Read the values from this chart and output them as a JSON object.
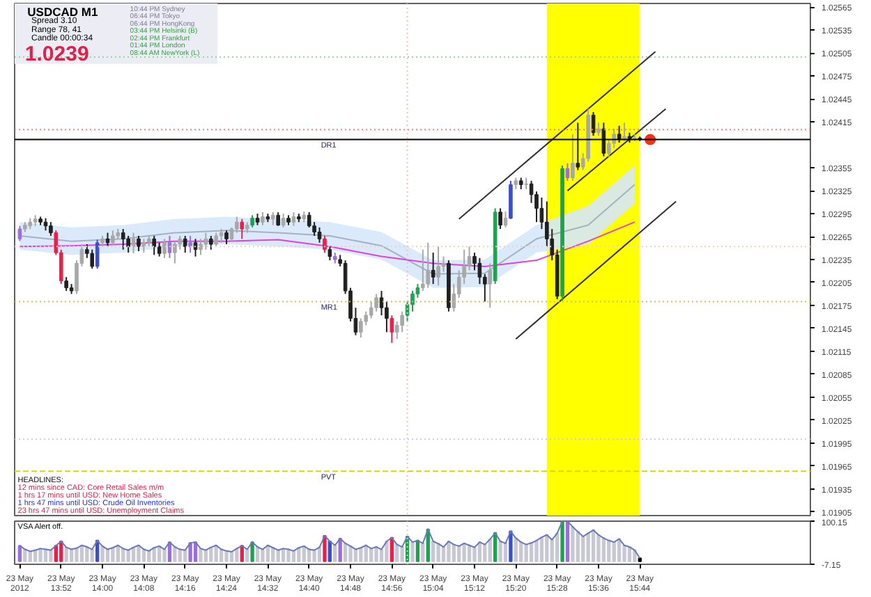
{
  "chart_data": [
    {
      "type": "candlestick",
      "x": [
        "2012-05-23T13:44",
        "2012-05-23T13:45",
        "2012-05-23T13:46",
        "2012-05-23T13:47",
        "2012-05-23T13:48",
        "2012-05-23T13:49",
        "2012-05-23T13:50",
        "2012-05-23T13:51",
        "2012-05-23T13:52",
        "2012-05-23T13:53",
        "2012-05-23T13:54",
        "2012-05-23T13:55",
        "2012-05-23T13:56",
        "2012-05-23T13:57",
        "2012-05-23T13:58",
        "2012-05-23T13:59",
        "2012-05-23T14:00",
        "2012-05-23T14:01",
        "2012-05-23T14:02",
        "2012-05-23T14:03",
        "2012-05-23T14:04",
        "2012-05-23T14:05",
        "2012-05-23T14:06",
        "2012-05-23T14:07",
        "2012-05-23T14:08",
        "2012-05-23T14:09",
        "2012-05-23T14:10",
        "2012-05-23T14:11",
        "2012-05-23T14:12",
        "2012-05-23T14:13",
        "2012-05-23T14:14",
        "2012-05-23T14:15",
        "2012-05-23T14:16",
        "2012-05-23T14:17",
        "2012-05-23T14:18",
        "2012-05-23T14:19",
        "2012-05-23T14:20",
        "2012-05-23T14:21",
        "2012-05-23T14:22",
        "2012-05-23T14:23",
        "2012-05-23T14:24",
        "2012-05-23T14:25",
        "2012-05-23T14:26",
        "2012-05-23T14:27",
        "2012-05-23T14:28",
        "2012-05-23T14:29",
        "2012-05-23T14:30",
        "2012-05-23T14:31",
        "2012-05-23T14:32",
        "2012-05-23T14:33",
        "2012-05-23T14:34",
        "2012-05-23T14:35",
        "2012-05-23T14:36",
        "2012-05-23T14:37",
        "2012-05-23T14:38",
        "2012-05-23T14:39",
        "2012-05-23T14:40",
        "2012-05-23T14:41",
        "2012-05-23T14:42",
        "2012-05-23T14:43",
        "2012-05-23T14:44",
        "2012-05-23T14:45",
        "2012-05-23T14:46",
        "2012-05-23T14:47",
        "2012-05-23T14:48",
        "2012-05-23T14:49",
        "2012-05-23T14:50",
        "2012-05-23T14:51",
        "2012-05-23T14:52",
        "2012-05-23T14:53",
        "2012-05-23T14:54",
        "2012-05-23T14:55",
        "2012-05-23T14:56",
        "2012-05-23T14:57",
        "2012-05-23T14:58",
        "2012-05-23T14:59",
        "2012-05-23T15:00",
        "2012-05-23T15:01",
        "2012-05-23T15:02",
        "2012-05-23T15:03",
        "2012-05-23T15:04",
        "2012-05-23T15:05",
        "2012-05-23T15:06",
        "2012-05-23T15:07",
        "2012-05-23T15:08",
        "2012-05-23T15:09",
        "2012-05-23T15:10",
        "2012-05-23T15:11",
        "2012-05-23T15:12",
        "2012-05-23T15:13",
        "2012-05-23T15:14",
        "2012-05-23T15:15",
        "2012-05-23T15:16",
        "2012-05-23T15:17",
        "2012-05-23T15:18",
        "2012-05-23T15:19",
        "2012-05-23T15:20",
        "2012-05-23T15:21",
        "2012-05-23T15:22",
        "2012-05-23T15:23",
        "2012-05-23T15:24",
        "2012-05-23T15:25",
        "2012-05-23T15:26",
        "2012-05-23T15:27",
        "2012-05-23T15:28",
        "2012-05-23T15:29",
        "2012-05-23T15:30",
        "2012-05-23T15:31",
        "2012-05-23T15:32",
        "2012-05-23T15:33",
        "2012-05-23T15:34",
        "2012-05-23T15:35",
        "2012-05-23T15:36",
        "2012-05-23T15:37",
        "2012-05-23T15:38",
        "2012-05-23T15:39",
        "2012-05-23T15:40",
        "2012-05-23T15:41",
        "2012-05-23T15:42",
        "2012-05-23T15:43",
        "2012-05-23T15:44"
      ],
      "ohlc": [
        [
          1.02262,
          1.02279,
          1.02259,
          1.02275
        ],
        [
          1.02275,
          1.02284,
          1.02271,
          1.0228
        ],
        [
          1.02279,
          1.02289,
          1.02275,
          1.02284
        ],
        [
          1.02284,
          1.02293,
          1.02279,
          1.02288
        ],
        [
          1.02288,
          1.02291,
          1.0228,
          1.02284
        ],
        [
          1.02284,
          1.02289,
          1.02273,
          1.02279
        ],
        [
          1.02279,
          1.02284,
          1.02266,
          1.0227
        ],
        [
          1.0227,
          1.02273,
          1.02241,
          1.02244
        ],
        [
          1.02244,
          1.02248,
          1.02203,
          1.02207
        ],
        [
          1.02207,
          1.02212,
          1.02194,
          1.02198
        ],
        [
          1.02198,
          1.02203,
          1.0219,
          1.02194
        ],
        [
          1.02194,
          1.02234,
          1.0219,
          1.0223
        ],
        [
          1.0223,
          1.02255,
          1.02226,
          1.02248
        ],
        [
          1.02248,
          1.02255,
          1.02237,
          1.02243
        ],
        [
          1.02243,
          1.02248,
          1.02223,
          1.02226
        ],
        [
          1.02226,
          1.02261,
          1.02223,
          1.02257
        ],
        [
          1.02257,
          1.02266,
          1.02252,
          1.02262
        ],
        [
          1.02262,
          1.0227,
          1.02252,
          1.02257
        ],
        [
          1.02257,
          1.02273,
          1.02253,
          1.02266
        ],
        [
          1.02266,
          1.02275,
          1.02262,
          1.0227
        ],
        [
          1.0227,
          1.02275,
          1.02248,
          1.02262
        ],
        [
          1.02262,
          1.02266,
          1.02244,
          1.02252
        ],
        [
          1.02252,
          1.0227,
          1.02243,
          1.02262
        ],
        [
          1.02262,
          1.02266,
          1.02246,
          1.02252
        ],
        [
          1.02252,
          1.02262,
          1.02244,
          1.02257
        ],
        [
          1.02257,
          1.02266,
          1.02252,
          1.02262
        ],
        [
          1.02262,
          1.02266,
          1.02241,
          1.02252
        ],
        [
          1.02252,
          1.02257,
          1.02239,
          1.02243
        ],
        [
          1.02243,
          1.02262,
          1.02237,
          1.02257
        ],
        [
          1.02257,
          1.02266,
          1.02237,
          1.02244
        ],
        [
          1.02244,
          1.02259,
          1.0223,
          1.02255
        ],
        [
          1.02255,
          1.02266,
          1.02248,
          1.02262
        ],
        [
          1.02262,
          1.02266,
          1.02244,
          1.02252
        ],
        [
          1.02252,
          1.02266,
          1.02244,
          1.02257
        ],
        [
          1.02257,
          1.02262,
          1.02239,
          1.02248
        ],
        [
          1.02248,
          1.02262,
          1.02241,
          1.02255
        ],
        [
          1.02255,
          1.0227,
          1.02248,
          1.02262
        ],
        [
          1.02262,
          1.02266,
          1.02248,
          1.02255
        ],
        [
          1.02255,
          1.0227,
          1.02252,
          1.02266
        ],
        [
          1.02266,
          1.02275,
          1.02257,
          1.0227
        ],
        [
          1.0227,
          1.02273,
          1.02255,
          1.02262
        ],
        [
          1.02262,
          1.02277,
          1.02259,
          1.02275
        ],
        [
          1.02275,
          1.02291,
          1.0227,
          1.02284
        ],
        [
          1.02284,
          1.02288,
          1.02262,
          1.02275
        ],
        [
          1.02275,
          1.02284,
          1.0227,
          1.0228
        ],
        [
          1.0228,
          1.02293,
          1.02277,
          1.02289
        ],
        [
          1.02289,
          1.02295,
          1.0228,
          1.02284
        ],
        [
          1.02284,
          1.02297,
          1.0228,
          1.02291
        ],
        [
          1.02291,
          1.02295,
          1.02284,
          1.02288
        ],
        [
          1.02288,
          1.02297,
          1.0228,
          1.02293
        ],
        [
          1.02293,
          1.02297,
          1.02279,
          1.0228
        ],
        [
          1.0228,
          1.02295,
          1.02277,
          1.02289
        ],
        [
          1.02289,
          1.02293,
          1.0228,
          1.02284
        ],
        [
          1.02284,
          1.02297,
          1.02279,
          1.02291
        ],
        [
          1.02291,
          1.02295,
          1.02284,
          1.02288
        ],
        [
          1.02288,
          1.02298,
          1.02284,
          1.02293
        ],
        [
          1.02293,
          1.02297,
          1.02277,
          1.02279
        ],
        [
          1.02279,
          1.02284,
          1.02266,
          1.02271
        ],
        [
          1.02271,
          1.02277,
          1.02257,
          1.02262
        ],
        [
          1.02262,
          1.02266,
          1.02244,
          1.02248
        ],
        [
          1.02248,
          1.02252,
          1.02234,
          1.02239
        ],
        [
          1.02239,
          1.02244,
          1.0223,
          1.02235
        ],
        [
          1.02235,
          1.02241,
          1.02226,
          1.0223
        ],
        [
          1.0223,
          1.02234,
          1.0219,
          1.02194
        ],
        [
          1.02194,
          1.02198,
          1.02154,
          1.02158
        ],
        [
          1.02158,
          1.02172,
          1.02136,
          1.0214
        ],
        [
          1.0214,
          1.02158,
          1.02133,
          1.02154
        ],
        [
          1.02154,
          1.02167,
          1.02149,
          1.02162
        ],
        [
          1.02162,
          1.0218,
          1.02158,
          1.02172
        ],
        [
          1.02172,
          1.0219,
          1.02167,
          1.02185
        ],
        [
          1.02185,
          1.02194,
          1.02162,
          1.02172
        ],
        [
          1.02172,
          1.0218,
          1.0214,
          1.02158
        ],
        [
          1.02158,
          1.02162,
          1.02126,
          1.0214
        ],
        [
          1.0214,
          1.02154,
          1.02131,
          1.02149
        ],
        [
          1.02149,
          1.02167,
          1.0214,
          1.02162
        ],
        [
          1.02162,
          1.0218,
          1.02154,
          1.02176
        ],
        [
          1.02176,
          1.02194,
          1.02167,
          1.0219
        ],
        [
          1.0219,
          1.02203,
          1.02185,
          1.02198
        ],
        [
          1.02198,
          1.02248,
          1.02194,
          1.02203
        ],
        [
          1.02203,
          1.02257,
          1.02198,
          1.02221
        ],
        [
          1.02221,
          1.02244,
          1.02203,
          1.02212
        ],
        [
          1.02212,
          1.02252,
          1.02201,
          1.02226
        ],
        [
          1.02226,
          1.02239,
          1.02219,
          1.0223
        ],
        [
          1.0223,
          1.02234,
          1.02167,
          1.02172
        ],
        [
          1.02172,
          1.02203,
          1.02167,
          1.0219
        ],
        [
          1.0219,
          1.02221,
          1.02185,
          1.02212
        ],
        [
          1.02212,
          1.02248,
          1.02203,
          1.02226
        ],
        [
          1.02226,
          1.02252,
          1.02221,
          1.02239
        ],
        [
          1.02239,
          1.02244,
          1.02221,
          1.0223
        ],
        [
          1.0223,
          1.02237,
          1.02203,
          1.02212
        ],
        [
          1.02212,
          1.02216,
          1.0218,
          1.02203
        ],
        [
          1.02203,
          1.0223,
          1.02172,
          1.02221
        ],
        [
          1.02207,
          1.02302,
          1.02203,
          1.02297
        ],
        [
          1.02297,
          1.02302,
          1.02275,
          1.0228
        ],
        [
          1.0228,
          1.02298,
          1.02277,
          1.02289
        ],
        [
          1.02289,
          1.02338,
          1.02288,
          1.02333
        ],
        [
          1.02333,
          1.02342,
          1.02327,
          1.02338
        ],
        [
          1.02338,
          1.02342,
          1.02327,
          1.02333
        ],
        [
          1.02333,
          1.02342,
          1.02327,
          1.02334
        ],
        [
          1.02334,
          1.02338,
          1.02309,
          1.0232
        ],
        [
          1.0232,
          1.02324,
          1.02284,
          1.02302
        ],
        [
          1.02302,
          1.02316,
          1.02275,
          1.02284
        ],
        [
          1.02284,
          1.02311,
          1.02252,
          1.02262
        ],
        [
          1.02262,
          1.02275,
          1.02234,
          1.02241
        ],
        [
          1.02241,
          1.02248,
          1.02183,
          1.02187
        ],
        [
          1.02187,
          1.02358,
          1.02181,
          1.02354
        ],
        [
          1.02354,
          1.02361,
          1.02338,
          1.02342
        ],
        [
          1.02342,
          1.02399,
          1.02338,
          1.02361
        ],
        [
          1.02361,
          1.02414,
          1.02352,
          1.02356
        ],
        [
          1.02356,
          1.02374,
          1.02352,
          1.02367
        ],
        [
          1.02367,
          1.02432,
          1.02363,
          1.02424
        ],
        [
          1.02424,
          1.02428,
          1.02397,
          1.02401
        ],
        [
          1.02401,
          1.02414,
          1.02397,
          1.02406
        ],
        [
          1.02406,
          1.02414,
          1.0237,
          1.02374
        ],
        [
          1.02374,
          1.02392,
          1.02369,
          1.02387
        ],
        [
          1.02387,
          1.02406,
          1.02381,
          1.02399
        ],
        [
          1.02399,
          1.0241,
          1.02388,
          1.02392
        ],
        [
          1.02392,
          1.02414,
          1.0239,
          1.02396
        ],
        [
          1.02396,
          1.02401,
          1.02388,
          1.02392
        ],
        [
          1.02392,
          1.02399,
          1.0239,
          1.02394
        ],
        [
          1.02394,
          1.02396,
          1.0239,
          1.02392
        ]
      ],
      "colors": [
        "#9a70d8",
        "#a8a8a8",
        "#a8a8a8",
        "#a8a8a8",
        "#202020",
        "#202020",
        "#202020",
        "#e8204a",
        "#e8204a",
        "#202020",
        "#202020",
        "#a8a8a8",
        "#a8a8a8",
        "#202020",
        "#202020",
        "#3a4fd0",
        "#a8a8a8",
        "#202020",
        "#a8a8a8",
        "#a8a8a8",
        "#202020",
        "#202020",
        "#a8a8a8",
        "#202020",
        "#a8a8a8",
        "#a8a8a8",
        "#202020",
        "#202020",
        "#a8a8a8",
        "#9a70d8",
        "#a8a8a8",
        "#a8a8a8",
        "#202020",
        "#9a70d8",
        "#202020",
        "#a8a8a8",
        "#a8a8a8",
        "#202020",
        "#a8a8a8",
        "#a8a8a8",
        "#202020",
        "#a8a8a8",
        "#a8a8a8",
        "#e8204a",
        "#a8a8a8",
        "#20a050",
        "#202020",
        "#a8a8a8",
        "#202020",
        "#a8a8a8",
        "#202020",
        "#a8a8a8",
        "#202020",
        "#a8a8a8",
        "#202020",
        "#a8a8a8",
        "#202020",
        "#202020",
        "#202020",
        "#e8204a",
        "#202020",
        "#9a70d8",
        "#202020",
        "#202020",
        "#202020",
        "#202020",
        "#a8a8a8",
        "#a8a8a8",
        "#a8a8a8",
        "#a8a8a8",
        "#202020",
        "#202020",
        "#e8204a",
        "#a8a8a8",
        "#a8a8a8",
        "#20a050",
        "#20a050",
        "#20a050",
        "#a8a8a8",
        "#a8a8a8",
        "#202020",
        "#a8a8a8",
        "#a8a8a8",
        "#202020",
        "#a8a8a8",
        "#a8a8a8",
        "#a8a8a8",
        "#a8a8a8",
        "#202020",
        "#202020",
        "#202020",
        "#a8a8a8",
        "#20a050",
        "#202020",
        "#a8a8a8",
        "#3a4fd0",
        "#a8a8a8",
        "#202020",
        "#a8a8a8",
        "#202020",
        "#202020",
        "#202020",
        "#202020",
        "#202020",
        "#202020",
        "#20a050",
        "#9a70d8",
        "#a8a8a8",
        "#202020",
        "#a8a8a8",
        "#a8a8a8",
        "#202020",
        "#a8a8a8",
        "#202020",
        "#a8a8a8",
        "#a8a8a8",
        "#202020",
        "#a8a8a8",
        "#202020",
        "#a8a8a8",
        "#202020"
      ],
      "series": [
        {
          "type": "line",
          "color": "#a8b0c0",
          "x": [
            "2012-05-23T13:44",
            "2012-05-23T13:54",
            "2012-05-23T14:04",
            "2012-05-23T14:14",
            "2012-05-23T14:24",
            "2012-05-23T14:34",
            "2012-05-23T14:44",
            "2012-05-23T14:54",
            "2012-05-23T15:04",
            "2012-05-23T15:14",
            "2012-05-23T15:24",
            "2012-05-23T15:34",
            "2012-05-23T15:43"
          ],
          "values": [
            1.02266,
            1.02259,
            1.02262,
            1.0227,
            1.02273,
            1.0227,
            1.02266,
            1.02253,
            1.02216,
            1.02217,
            1.02262,
            1.0228,
            1.02333
          ],
          "lower": [
            1.02248,
            1.02241,
            1.02244,
            1.02252,
            1.02255,
            1.02252,
            1.02248,
            1.02235,
            1.02198,
            1.02199,
            1.02244,
            1.02255,
            1.02308
          ],
          "upper": [
            1.02284,
            1.02277,
            1.0228,
            1.02288,
            1.02291,
            1.02288,
            1.02284,
            1.02271,
            1.02234,
            1.02235,
            1.0228,
            1.02305,
            1.02358
          ]
        },
        {
          "type": "line",
          "color": "#e040e0",
          "x": [
            "2012-05-23T13:44",
            "2012-05-23T13:54",
            "2012-05-23T14:04",
            "2012-05-23T14:14",
            "2012-05-23T14:24",
            "2012-05-23T14:34",
            "2012-05-23T14:44",
            "2012-05-23T14:54",
            "2012-05-23T15:04",
            "2012-05-23T15:14",
            "2012-05-23T15:24",
            "2012-05-23T15:34",
            "2012-05-23T15:43"
          ],
          "values": [
            1.02252,
            1.02253,
            1.02255,
            1.02259,
            1.02259,
            1.02261,
            1.02252,
            1.02239,
            1.0223,
            1.02226,
            1.02234,
            1.02259,
            1.02284
          ]
        },
        {
          "type": "line",
          "color": "#303030",
          "x": [
            "2012-05-23T15:09",
            "2012-05-23T15:47"
          ],
          "values": [
            1.02288,
            1.02507
          ]
        },
        {
          "type": "line",
          "color": "#303030",
          "x": [
            "2012-05-23T15:30",
            "2012-05-23T15:49"
          ],
          "values": [
            1.02325,
            1.02432
          ]
        },
        {
          "type": "line",
          "color": "#303030",
          "x": [
            "2012-05-23T15:20",
            "2012-05-23T15:51"
          ],
          "values": [
            1.02131,
            1.02311
          ]
        },
        {
          "type": "scatter",
          "color": "#ff3010",
          "marker": "circle",
          "x": [
            "2012-05-23T15:46"
          ],
          "values": [
            1.02392
          ]
        }
      ],
      "xlim": [
        "2012-05-23T13:43",
        "2012-05-23T16:17"
      ],
      "ylim": [
        1.019,
        1.0257
      ],
      "yticks": [
        1.01905,
        1.01935,
        1.01965,
        1.01995,
        1.02025,
        1.02055,
        1.02085,
        1.02115,
        1.02145,
        1.02175,
        1.02205,
        1.02235,
        1.02265,
        1.02295,
        1.02325,
        1.02355,
        1.02415,
        1.02445,
        1.02475,
        1.02505,
        1.02535,
        1.02565
      ],
      "tick_labels": "y",
      "bands": [
        {
          "axis": "x",
          "from": "2012-05-23T15:26",
          "to": "2012-05-23T15:44",
          "color": "#ffff00"
        }
      ],
      "ref_lines": [
        {
          "axis": "y",
          "value": 1.025,
          "color": "#9ad89a",
          "line_style": "dotted"
        },
        {
          "axis": "y",
          "value": 1.02405,
          "color": "#f08080",
          "line_style": "dotted"
        },
        {
          "axis": "y",
          "value": 1.02392,
          "label": "DR1",
          "color": "#000000",
          "line_style": "solid"
        },
        {
          "axis": "y",
          "value": 1.02252,
          "color": "#f0d0c0",
          "line_style": "dotted"
        },
        {
          "axis": "y",
          "value": 1.0218,
          "label": "MR1",
          "color": "#c8c850",
          "line_style": "dotted"
        },
        {
          "axis": "y",
          "value": 1.02,
          "color": "#c8c8f0",
          "line_style": "dotted"
        },
        {
          "axis": "y",
          "value": 1.01958,
          "label": "PVT",
          "color": "#d8d800",
          "line_style": "dashed"
        },
        {
          "axis": "x",
          "value": "2012-05-23T14:59",
          "color": "#f0c0c0",
          "line_style": "dotted"
        }
      ],
      "annotations": [
        "USDCAD  M1",
        "Spread  3.10",
        "Range  78, 41",
        "Candle  00:00:34",
        "1.0239",
        "10:44 PM   Sydney",
        "06:44 PM   Tokyo",
        "06:44 PM   HongKong",
        "03:44 PM   Helsinki  (B)",
        "02:44 PM   Frankfurt",
        "01:44 PM   London",
        "08:44 AM   NewYork  (L)",
        "HEADLINES:",
        "12 mins since CAD: Core Retail Sales m/m",
        "1 hrs 17 mins until USD: New Home Sales",
        "1 hrs 47 mins until USD: Crude Oil Inventories",
        "23 hrs 47 mins until USD: Unemployment Claims"
      ]
    },
    {
      "type": "bar",
      "x": [
        "2012-05-23T13:44",
        "2012-05-23T13:45",
        "2012-05-23T13:46",
        "2012-05-23T13:47",
        "2012-05-23T13:48",
        "2012-05-23T13:49",
        "2012-05-23T13:50",
        "2012-05-23T13:51",
        "2012-05-23T13:52",
        "2012-05-23T13:53",
        "2012-05-23T13:54",
        "2012-05-23T13:55",
        "2012-05-23T13:56",
        "2012-05-23T13:57",
        "2012-05-23T13:58",
        "2012-05-23T13:59",
        "2012-05-23T14:00",
        "2012-05-23T14:01",
        "2012-05-23T14:02",
        "2012-05-23T14:03",
        "2012-05-23T14:04",
        "2012-05-23T14:05",
        "2012-05-23T14:06",
        "2012-05-23T14:07",
        "2012-05-23T14:08",
        "2012-05-23T14:09",
        "2012-05-23T14:10",
        "2012-05-23T14:11",
        "2012-05-23T14:12",
        "2012-05-23T14:13",
        "2012-05-23T14:14",
        "2012-05-23T14:15",
        "2012-05-23T14:16",
        "2012-05-23T14:17",
        "2012-05-23T14:18",
        "2012-05-23T14:19",
        "2012-05-23T14:20",
        "2012-05-23T14:21",
        "2012-05-23T14:22",
        "2012-05-23T14:23",
        "2012-05-23T14:24",
        "2012-05-23T14:25",
        "2012-05-23T14:26",
        "2012-05-23T14:27",
        "2012-05-23T14:28",
        "2012-05-23T14:29",
        "2012-05-23T14:30",
        "2012-05-23T14:31",
        "2012-05-23T14:32",
        "2012-05-23T14:33",
        "2012-05-23T14:34",
        "2012-05-23T14:35",
        "2012-05-23T14:36",
        "2012-05-23T14:37",
        "2012-05-23T14:38",
        "2012-05-23T14:39",
        "2012-05-23T14:40",
        "2012-05-23T14:41",
        "2012-05-23T14:42",
        "2012-05-23T14:43",
        "2012-05-23T14:44",
        "2012-05-23T14:45",
        "2012-05-23T14:46",
        "2012-05-23T14:47",
        "2012-05-23T14:48",
        "2012-05-23T14:49",
        "2012-05-23T14:50",
        "2012-05-23T14:51",
        "2012-05-23T14:52",
        "2012-05-23T14:53",
        "2012-05-23T14:54",
        "2012-05-23T14:55",
        "2012-05-23T14:56",
        "2012-05-23T14:57",
        "2012-05-23T14:58",
        "2012-05-23T14:59",
        "2012-05-23T15:00",
        "2012-05-23T15:01",
        "2012-05-23T15:02",
        "2012-05-23T15:03",
        "2012-05-23T15:04",
        "2012-05-23T15:05",
        "2012-05-23T15:06",
        "2012-05-23T15:07",
        "2012-05-23T15:08",
        "2012-05-23T15:09",
        "2012-05-23T15:10",
        "2012-05-23T15:11",
        "2012-05-23T15:12",
        "2012-05-23T15:13",
        "2012-05-23T15:14",
        "2012-05-23T15:15",
        "2012-05-23T15:16",
        "2012-05-23T15:17",
        "2012-05-23T15:18",
        "2012-05-23T15:19",
        "2012-05-23T15:20",
        "2012-05-23T15:21",
        "2012-05-23T15:22",
        "2012-05-23T15:23",
        "2012-05-23T15:24",
        "2012-05-23T15:25",
        "2012-05-23T15:26",
        "2012-05-23T15:27",
        "2012-05-23T15:28",
        "2012-05-23T15:29",
        "2012-05-23T15:30",
        "2012-05-23T15:31",
        "2012-05-23T15:32",
        "2012-05-23T15:33",
        "2012-05-23T15:34",
        "2012-05-23T15:35",
        "2012-05-23T15:36",
        "2012-05-23T15:37",
        "2012-05-23T15:38",
        "2012-05-23T15:39",
        "2012-05-23T15:40",
        "2012-05-23T15:41",
        "2012-05-23T15:42",
        "2012-05-23T15:43",
        "2012-05-23T15:44"
      ],
      "series": [
        {
          "type": "bar",
          "colors": [
            "#9a70d8",
            "#c8c8d4",
            "#c8c8d4",
            "#c8c8d4",
            "#c8c8d4",
            "#c8c8d4",
            "#c8c8d4",
            "#e8204a",
            "#e8204a",
            "#c8c8d4",
            "#c8c8d4",
            "#c8c8d4",
            "#c8c8d4",
            "#c8c8d4",
            "#c8c8d4",
            "#3a4fd0",
            "#c8c8d4",
            "#c8c8d4",
            "#c8c8d4",
            "#c8c8d4",
            "#c8c8d4",
            "#c8c8d4",
            "#c8c8d4",
            "#c8c8d4",
            "#c8c8d4",
            "#c8c8d4",
            "#c8c8d4",
            "#c8c8d4",
            "#c8c8d4",
            "#9a70d8",
            "#c8c8d4",
            "#c8c8d4",
            "#c8c8d4",
            "#9a70d8",
            "#9a70d8",
            "#c8c8d4",
            "#c8c8d4",
            "#c8c8d4",
            "#c8c8d4",
            "#c8c8d4",
            "#c8c8d4",
            "#c8c8d4",
            "#c8c8d4",
            "#e8204a",
            "#c8c8d4",
            "#20a050",
            "#c8c8d4",
            "#c8c8d4",
            "#c8c8d4",
            "#c8c8d4",
            "#c8c8d4",
            "#c8c8d4",
            "#c8c8d4",
            "#c8c8d4",
            "#c8c8d4",
            "#c8c8d4",
            "#c8c8d4",
            "#c8c8d4",
            "#c8c8d4",
            "#e8204a",
            "#3a4fd0",
            "#c8c8d4",
            "#9a70d8",
            "#c8c8d4",
            "#c8c8d4",
            "#c8c8d4",
            "#c8c8d4",
            "#c8c8d4",
            "#c8c8d4",
            "#c8c8d4",
            "#c8c8d4",
            "#c8c8d4",
            "#e8204a",
            "#c8c8d4",
            "#c8c8d4",
            "#20a050",
            "#c8c8d4",
            "#20a050",
            "#c8c8d4",
            "#20a050",
            "#c8c8d4",
            "#c8c8d4",
            "#c8c8d4",
            "#c8c8d4",
            "#c8c8d4",
            "#c8c8d4",
            "#c8c8d4",
            "#c8c8d4",
            "#c8c8d4",
            "#c8c8d4",
            "#c8c8d4",
            "#c8c8d4",
            "#20a050",
            "#c8c8d4",
            "#c8c8d4",
            "#3a4fd0",
            "#c8c8d4",
            "#c8c8d4",
            "#c8c8d4",
            "#c8c8d4",
            "#c8c8d4",
            "#c8c8d4",
            "#c8c8d4",
            "#c8c8d4",
            "#c8c8d4",
            "#20a050",
            "#9a70d8",
            "#c8c8d4",
            "#c8c8d4",
            "#c8c8d4",
            "#c8c8d4",
            "#c8c8d4",
            "#c8c8d4",
            "#c8c8d4",
            "#c8c8d4",
            "#c8c8d4",
            "#c8c8d4",
            "#c8c8d4",
            "#c8c8d4",
            "#c8c8d4",
            "#000000"
          ],
          "values": [
            39,
            30,
            25,
            28,
            32,
            30,
            28,
            39,
            50,
            35,
            30,
            33,
            40,
            36,
            30,
            52,
            38,
            30,
            34,
            40,
            32,
            28,
            35,
            40,
            30,
            26,
            34,
            38,
            30,
            48,
            36,
            30,
            28,
            46,
            48,
            32,
            28,
            35,
            40,
            30,
            26,
            24,
            32,
            39,
            30,
            48,
            36,
            30,
            40,
            34,
            28,
            32,
            30,
            26,
            34,
            38,
            30,
            28,
            35,
            64,
            50,
            40,
            57,
            45,
            38,
            30,
            34,
            40,
            32,
            36,
            30,
            50,
            59,
            42,
            36,
            62,
            48,
            52,
            45,
            80,
            50,
            44,
            36,
            50,
            42,
            38,
            45,
            40,
            35,
            48,
            42,
            55,
            71,
            50,
            45,
            75,
            58,
            48,
            42,
            46,
            52,
            60,
            66,
            54,
            70,
            100,
            100,
            86,
            74,
            62,
            70,
            78,
            66,
            58,
            52,
            48,
            56,
            40,
            36,
            28,
            8
          ]
        },
        {
          "type": "line",
          "color": "#6878b8",
          "values": [
            39,
            30,
            25,
            28,
            32,
            30,
            28,
            39,
            50,
            35,
            30,
            33,
            40,
            36,
            30,
            52,
            38,
            30,
            34,
            40,
            32,
            28,
            35,
            40,
            30,
            26,
            34,
            38,
            30,
            48,
            36,
            30,
            28,
            46,
            48,
            32,
            28,
            35,
            40,
            30,
            26,
            24,
            32,
            39,
            30,
            48,
            36,
            30,
            40,
            34,
            28,
            32,
            30,
            26,
            34,
            38,
            30,
            28,
            35,
            64,
            50,
            40,
            57,
            45,
            38,
            30,
            34,
            40,
            32,
            36,
            30,
            50,
            59,
            42,
            36,
            62,
            48,
            52,
            45,
            80,
            50,
            44,
            36,
            50,
            42,
            38,
            45,
            40,
            35,
            48,
            42,
            55,
            71,
            50,
            45,
            75,
            58,
            48,
            42,
            46,
            52,
            60,
            66,
            54,
            70,
            100,
            100,
            86,
            74,
            62,
            70,
            78,
            66,
            58,
            52,
            48,
            56,
            40,
            36,
            28,
            8
          ]
        }
      ],
      "xlim": [
        "2012-05-23T13:43",
        "2012-05-23T16:17"
      ],
      "xticks": [
        {
          "value": "2012-05-23T13:44",
          "label": "23 May 2012"
        },
        {
          "value": "2012-05-23T13:52",
          "label": "23 May 13:52"
        },
        {
          "value": "2012-05-23T14:00",
          "label": "23 May 14:00"
        },
        {
          "value": "2012-05-23T14:08",
          "label": "23 May 14:08"
        },
        {
          "value": "2012-05-23T14:16",
          "label": "23 May 14:16"
        },
        {
          "value": "2012-05-23T14:24",
          "label": "23 May 14:24"
        },
        {
          "value": "2012-05-23T14:32",
          "label": "23 May 14:32"
        },
        {
          "value": "2012-05-23T14:40",
          "label": "23 May 14:40"
        },
        {
          "value": "2012-05-23T14:48",
          "label": "23 May 14:48"
        },
        {
          "value": "2012-05-23T14:56",
          "label": "23 May 14:56"
        },
        {
          "value": "2012-05-23T15:04",
          "label": "23 May 15:04"
        },
        {
          "value": "2012-05-23T15:12",
          "label": "23 May 15:12"
        },
        {
          "value": "2012-05-23T15:20",
          "label": "23 May 15:20"
        },
        {
          "value": "2012-05-23T15:28",
          "label": "23 May 15:28"
        },
        {
          "value": "2012-05-23T15:36",
          "label": "23 May 15:36"
        },
        {
          "value": "2012-05-23T15:44",
          "label": "23 May 15:44"
        }
      ],
      "ylim": [
        -7.15,
        100.15
      ],
      "yticks": [
        -7.15,
        100.15
      ],
      "ref_lines": [
        {
          "axis": "x",
          "value": "2012-05-23T14:59",
          "color": "#f0c0c0",
          "line_style": "dotted"
        }
      ],
      "annotations": [
        "VSA   Alert off."
      ]
    }
  ]
}
